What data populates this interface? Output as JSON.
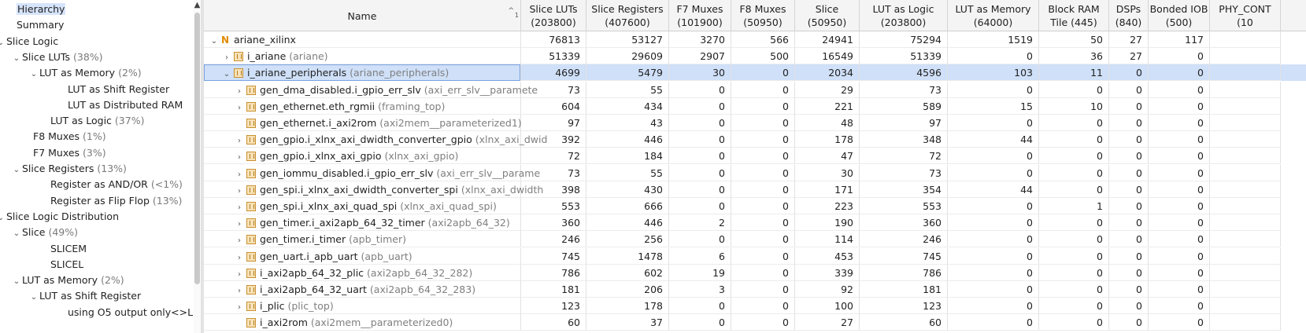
{
  "tree": {
    "items": [
      {
        "label": "Hierarchy",
        "pct": "",
        "chev": "",
        "selected": true
      },
      {
        "label": "Summary",
        "pct": "",
        "chev": ""
      },
      {
        "label": "Slice Logic",
        "pct": "",
        "chev": "⌄"
      },
      {
        "label": "Slice LUTs",
        "pct": "(38%)",
        "chev": "⌄"
      },
      {
        "label": "LUT as Memory",
        "pct": "(2%)",
        "chev": "⌄"
      },
      {
        "label": "LUT as Shift Register",
        "pct": "",
        "chev": ""
      },
      {
        "label": "LUT as Distributed RAM",
        "pct": "",
        "chev": ""
      },
      {
        "label": "LUT as Logic",
        "pct": "(37%)",
        "chev": ""
      },
      {
        "label": "F8 Muxes",
        "pct": "(1%)",
        "chev": ""
      },
      {
        "label": "F7 Muxes",
        "pct": "(3%)",
        "chev": ""
      },
      {
        "label": "Slice Registers",
        "pct": "(13%)",
        "chev": "⌄"
      },
      {
        "label": "Register as AND/OR",
        "pct": "(<1%)",
        "chev": ""
      },
      {
        "label": "Register as Flip Flop",
        "pct": "(13%)",
        "chev": ""
      },
      {
        "label": "Slice Logic Distribution",
        "pct": "",
        "chev": "⌄"
      },
      {
        "label": "Slice",
        "pct": "(49%)",
        "chev": "⌄"
      },
      {
        "label": "SLICEM",
        "pct": "",
        "chev": ""
      },
      {
        "label": "SLICEL",
        "pct": "",
        "chev": ""
      },
      {
        "label": "LUT as Memory",
        "pct": "(2%)",
        "chev": "⌄"
      },
      {
        "label": "LUT as Shift Register",
        "pct": "",
        "chev": "⌄"
      },
      {
        "label": "using O5 output only<>L",
        "pct": "",
        "chev": ""
      }
    ]
  },
  "table": {
    "sort_indicator": "^",
    "sort_index": "1",
    "columns": [
      {
        "line1": "Name",
        "line2": ""
      },
      {
        "line1": "Slice LUTs",
        "line2": "(203800)"
      },
      {
        "line1": "Slice Registers",
        "line2": "(407600)"
      },
      {
        "line1": "F7 Muxes",
        "line2": "(101900)"
      },
      {
        "line1": "F8 Muxes",
        "line2": "(50950)"
      },
      {
        "line1": "Slice",
        "line2": "(50950)"
      },
      {
        "line1": "LUT as Logic",
        "line2": "(203800)"
      },
      {
        "line1": "LUT as Memory",
        "line2": "(64000)"
      },
      {
        "line1": "Block RAM",
        "line2": "Tile (445)"
      },
      {
        "line1": "DSPs",
        "line2": "(840)"
      },
      {
        "line1": "Bonded IOB",
        "line2": "(500)"
      },
      {
        "line1": "PHY_CONT",
        "line2": "(10"
      }
    ],
    "rows": [
      {
        "name": "ariane_xilinx",
        "type": "",
        "chev": "⌄",
        "icon": "top",
        "values": [
          "76813",
          "53127",
          "3270",
          "566",
          "24941",
          "75294",
          "1519",
          "50",
          "27",
          "117"
        ]
      },
      {
        "name": "i_ariane",
        "type": "(ariane)",
        "chev": "›",
        "icon": "module",
        "values": [
          "51339",
          "29609",
          "2907",
          "500",
          "16549",
          "51339",
          "0",
          "36",
          "27",
          "0"
        ]
      },
      {
        "name": "i_ariane_peripherals",
        "type": "(ariane_peripherals)",
        "chev": "⌄",
        "icon": "module",
        "selected": true,
        "values": [
          "4699",
          "5479",
          "30",
          "0",
          "2034",
          "4596",
          "103",
          "11",
          "0",
          "0"
        ]
      },
      {
        "name": "gen_dma_disabled.i_gpio_err_slv",
        "type": "(axi_err_slv__paramete",
        "chev": "›",
        "icon": "module",
        "values": [
          "73",
          "55",
          "0",
          "0",
          "29",
          "73",
          "0",
          "0",
          "0",
          "0"
        ]
      },
      {
        "name": "gen_ethernet.eth_rgmii",
        "type": "(framing_top)",
        "chev": "›",
        "icon": "module",
        "values": [
          "604",
          "434",
          "0",
          "0",
          "221",
          "589",
          "15",
          "10",
          "0",
          "0"
        ]
      },
      {
        "name": "gen_ethernet.i_axi2rom",
        "type": "(axi2mem__parameterized1)",
        "chev": "",
        "icon": "module",
        "values": [
          "97",
          "43",
          "0",
          "0",
          "48",
          "97",
          "0",
          "0",
          "0",
          "0"
        ]
      },
      {
        "name": "gen_gpio.i_xlnx_axi_dwidth_converter_gpio",
        "type": "(xlnx_axi_dwid",
        "chev": "›",
        "icon": "module",
        "values": [
          "392",
          "446",
          "0",
          "0",
          "178",
          "348",
          "44",
          "0",
          "0",
          "0"
        ]
      },
      {
        "name": "gen_gpio.i_xlnx_axi_gpio",
        "type": "(xlnx_axi_gpio)",
        "chev": "›",
        "icon": "module",
        "values": [
          "72",
          "184",
          "0",
          "0",
          "47",
          "72",
          "0",
          "0",
          "0",
          "0"
        ]
      },
      {
        "name": "gen_iommu_disabled.i_gpio_err_slv",
        "type": "(axi_err_slv__parame",
        "chev": "›",
        "icon": "module",
        "values": [
          "73",
          "55",
          "0",
          "0",
          "30",
          "73",
          "0",
          "0",
          "0",
          "0"
        ]
      },
      {
        "name": "gen_spi.i_xlnx_axi_dwidth_converter_spi",
        "type": "(xlnx_axi_dwidth",
        "chev": "›",
        "icon": "module",
        "values": [
          "398",
          "430",
          "0",
          "0",
          "171",
          "354",
          "44",
          "0",
          "0",
          "0"
        ]
      },
      {
        "name": "gen_spi.i_xlnx_axi_quad_spi",
        "type": "(xlnx_axi_quad_spi)",
        "chev": "›",
        "icon": "module",
        "values": [
          "553",
          "666",
          "0",
          "0",
          "223",
          "553",
          "0",
          "1",
          "0",
          "0"
        ]
      },
      {
        "name": "gen_timer.i_axi2apb_64_32_timer",
        "type": "(axi2apb_64_32)",
        "chev": "›",
        "icon": "module",
        "values": [
          "360",
          "446",
          "2",
          "0",
          "190",
          "360",
          "0",
          "0",
          "0",
          "0"
        ]
      },
      {
        "name": "gen_timer.i_timer",
        "type": "(apb_timer)",
        "chev": "›",
        "icon": "module",
        "values": [
          "246",
          "256",
          "0",
          "0",
          "114",
          "246",
          "0",
          "0",
          "0",
          "0"
        ]
      },
      {
        "name": "gen_uart.i_apb_uart",
        "type": "(apb_uart)",
        "chev": "›",
        "icon": "module",
        "values": [
          "745",
          "1478",
          "6",
          "0",
          "453",
          "745",
          "0",
          "0",
          "0",
          "0"
        ]
      },
      {
        "name": "i_axi2apb_64_32_plic",
        "type": "(axi2apb_64_32_282)",
        "chev": "›",
        "icon": "module",
        "values": [
          "786",
          "602",
          "19",
          "0",
          "339",
          "786",
          "0",
          "0",
          "0",
          "0"
        ]
      },
      {
        "name": "i_axi2apb_64_32_uart",
        "type": "(axi2apb_64_32_283)",
        "chev": "›",
        "icon": "module",
        "values": [
          "181",
          "206",
          "3",
          "0",
          "92",
          "181",
          "0",
          "0",
          "0",
          "0"
        ]
      },
      {
        "name": "i_plic",
        "type": "(plic_top)",
        "chev": "›",
        "icon": "module",
        "values": [
          "123",
          "178",
          "0",
          "0",
          "100",
          "123",
          "0",
          "0",
          "0",
          "0"
        ]
      },
      {
        "name": "i_axi2rom",
        "type": "(axi2mem__parameterized0)",
        "chev": "",
        "icon": "module",
        "values": [
          "60",
          "37",
          "0",
          "0",
          "27",
          "60",
          "0",
          "0",
          "0",
          "0"
        ]
      }
    ]
  }
}
